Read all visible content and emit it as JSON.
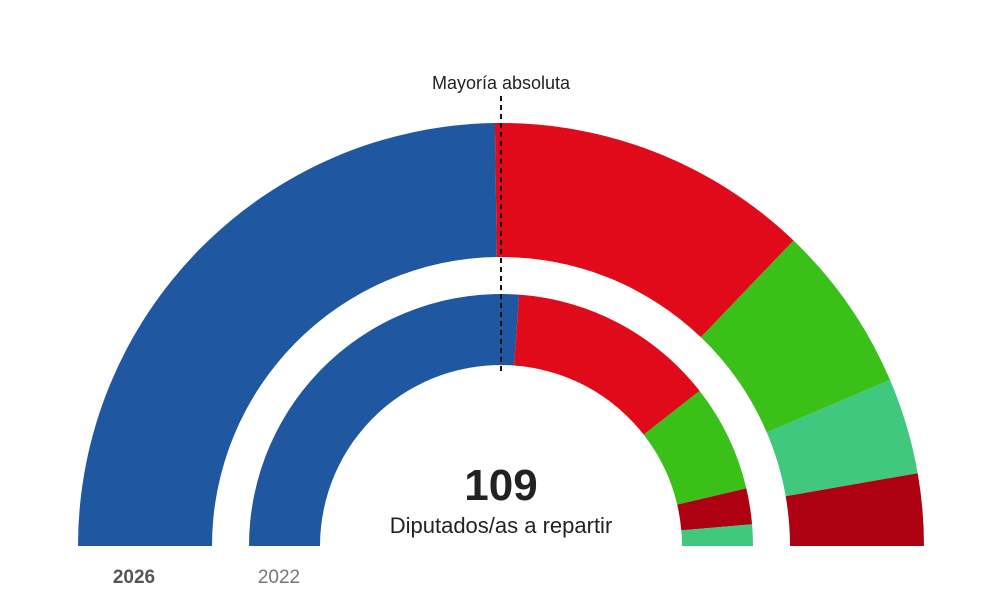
{
  "majority_label": "Mayoría absoluta",
  "total_seats": "109",
  "total_caption": "Diputados/as a repartir",
  "years": {
    "current": "2026",
    "previous": "2022"
  },
  "chart_data": [
    {
      "type": "pie",
      "title": "",
      "ring": "outer",
      "year": "2026",
      "total": 109,
      "slices": [
        {
          "value": 54,
          "color": "#1f58a0"
        },
        {
          "value": 27,
          "color": "#e00a1a"
        },
        {
          "value": 14,
          "color": "#3ac018"
        },
        {
          "value": 8,
          "color": "#3fc87e"
        },
        {
          "value": 6,
          "color": "#ad0011"
        }
      ]
    },
    {
      "type": "pie",
      "title": "",
      "ring": "inner",
      "year": "2022",
      "total": 109,
      "slices": [
        {
          "value": 57,
          "color": "#1f58a0"
        },
        {
          "value": 29,
          "color": "#e00a1a"
        },
        {
          "value": 15,
          "color": "#3ac018"
        },
        {
          "value": 5,
          "color": "#ad0011"
        },
        {
          "value": 3,
          "color": "#3fc87e"
        }
      ]
    }
  ]
}
